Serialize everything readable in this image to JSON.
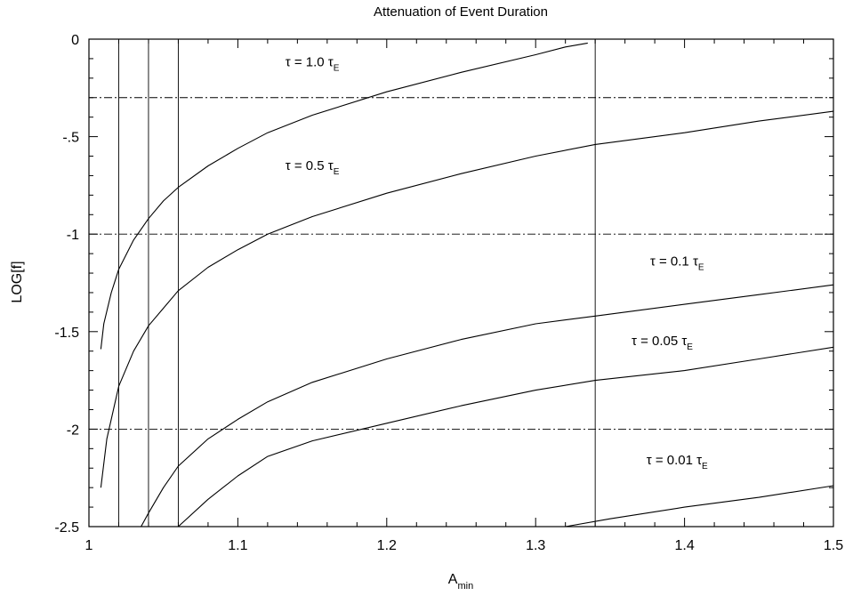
{
  "chart_data": {
    "type": "line",
    "title": "Attenuation of Event Duration",
    "xlabel": "A",
    "xlabel_subscript": "min",
    "ylabel": "LOG[f]",
    "xlim": [
      1.0,
      1.5
    ],
    "ylim": [
      -2.5,
      0
    ],
    "xticks": [
      1.0,
      1.1,
      1.2,
      1.3,
      1.4,
      1.5
    ],
    "xtick_labels": [
      "1",
      "1.1",
      "1.2",
      "1.3",
      "1.4",
      "1.5"
    ],
    "yticks": [
      0,
      -0.5,
      -1,
      -1.5,
      -2,
      -2.5
    ],
    "ytick_labels": [
      "0",
      "-.5",
      "-1",
      "-1.5",
      "-2",
      "-2.5"
    ],
    "grid": false,
    "reference_lines": {
      "horizontal_dashdot_y": [
        -0.3,
        -1.0,
        -2.0
      ],
      "vertical_solid_x": [
        1.02,
        1.04,
        1.06,
        1.34
      ]
    },
    "series": [
      {
        "name": "τ = 1.0 τE",
        "label_main": "τ = 1.0 τ",
        "label_sub": "E",
        "x": [
          1.008,
          1.01,
          1.015,
          1.02,
          1.03,
          1.04,
          1.05,
          1.06,
          1.08,
          1.1,
          1.12,
          1.15,
          1.2,
          1.25,
          1.3,
          1.32,
          1.335
        ],
        "y": [
          -1.59,
          -1.46,
          -1.3,
          -1.18,
          -1.03,
          -0.92,
          -0.83,
          -0.76,
          -0.65,
          -0.56,
          -0.48,
          -0.39,
          -0.27,
          -0.17,
          -0.08,
          -0.04,
          -0.02
        ]
      },
      {
        "name": "τ = 0.5 τE",
        "label_main": "τ = 0.5 τ",
        "label_sub": "E",
        "x": [
          1.008,
          1.012,
          1.02,
          1.03,
          1.04,
          1.05,
          1.06,
          1.08,
          1.1,
          1.12,
          1.15,
          1.2,
          1.25,
          1.3,
          1.34,
          1.4,
          1.45,
          1.5
        ],
        "y": [
          -2.3,
          -2.05,
          -1.78,
          -1.6,
          -1.47,
          -1.38,
          -1.29,
          -1.17,
          -1.08,
          -1.0,
          -0.91,
          -0.79,
          -0.69,
          -0.6,
          -0.54,
          -0.48,
          -0.42,
          -0.37
        ]
      },
      {
        "name": "τ = 0.1 τE",
        "label_main": "τ = 0.1 τ",
        "label_sub": "E",
        "x": [
          1.035,
          1.04,
          1.05,
          1.06,
          1.08,
          1.1,
          1.12,
          1.15,
          1.2,
          1.25,
          1.3,
          1.34,
          1.4,
          1.45,
          1.5
        ],
        "y": [
          -2.5,
          -2.43,
          -2.3,
          -2.19,
          -2.05,
          -1.95,
          -1.86,
          -1.76,
          -1.64,
          -1.54,
          -1.46,
          -1.42,
          -1.36,
          -1.31,
          -1.26
        ]
      },
      {
        "name": "τ = 0.05 τE",
        "label_main": "τ = 0.05 τ",
        "label_sub": "E",
        "x": [
          1.06,
          1.08,
          1.1,
          1.12,
          1.15,
          1.2,
          1.25,
          1.3,
          1.34,
          1.4,
          1.45,
          1.5
        ],
        "y": [
          -2.5,
          -2.36,
          -2.24,
          -2.14,
          -2.06,
          -1.97,
          -1.88,
          -1.8,
          -1.75,
          -1.7,
          -1.64,
          -1.58
        ]
      },
      {
        "name": "τ = 0.01 τE",
        "label_main": "τ = 0.01 τ",
        "label_sub": "E",
        "x": [
          1.32,
          1.35,
          1.4,
          1.45,
          1.5
        ],
        "y": [
          -2.5,
          -2.46,
          -2.4,
          -2.35,
          -2.29
        ]
      }
    ],
    "series_label_positions_data": [
      {
        "x": 1.15,
        "y": -0.14
      },
      {
        "x": 1.15,
        "y": -0.67
      },
      {
        "x": 1.395,
        "y": -1.16
      },
      {
        "x": 1.385,
        "y": -1.57
      },
      {
        "x": 1.395,
        "y": -2.18
      }
    ]
  }
}
